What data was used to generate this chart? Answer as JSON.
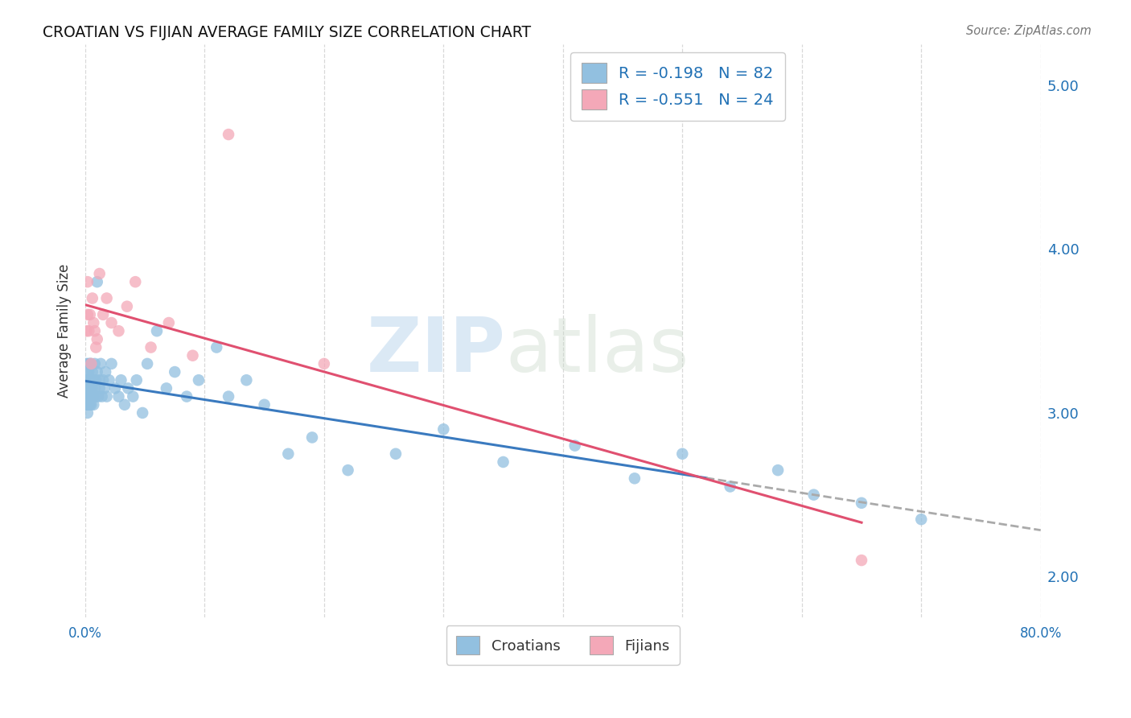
{
  "title": "CROATIAN VS FIJIAN AVERAGE FAMILY SIZE CORRELATION CHART",
  "source": "Source: ZipAtlas.com",
  "ylabel": "Average Family Size",
  "right_yticks": [
    2.0,
    3.0,
    4.0,
    5.0
  ],
  "legend_croatian": "R = -0.198   N = 82",
  "legend_fijian": "R = -0.551   N = 24",
  "legend_label1": "Croatians",
  "legend_label2": "Fijians",
  "color_croatian": "#92c0e0",
  "color_fijian": "#f4a8b8",
  "color_line_croatian": "#3a7abf",
  "color_line_fijian": "#e05070",
  "color_line_ext": "#aaaaaa",
  "watermark_zip": "ZIP",
  "watermark_atlas": "atlas",
  "background_color": "#ffffff",
  "croatian_x": [
    0.001,
    0.001,
    0.001,
    0.001,
    0.001,
    0.002,
    0.002,
    0.002,
    0.002,
    0.002,
    0.002,
    0.002,
    0.003,
    0.003,
    0.003,
    0.003,
    0.003,
    0.003,
    0.004,
    0.004,
    0.004,
    0.004,
    0.005,
    0.005,
    0.005,
    0.005,
    0.005,
    0.006,
    0.006,
    0.006,
    0.007,
    0.007,
    0.007,
    0.008,
    0.008,
    0.009,
    0.009,
    0.01,
    0.01,
    0.011,
    0.012,
    0.012,
    0.013,
    0.014,
    0.015,
    0.016,
    0.017,
    0.018,
    0.02,
    0.022,
    0.025,
    0.028,
    0.03,
    0.033,
    0.036,
    0.04,
    0.043,
    0.048,
    0.052,
    0.06,
    0.068,
    0.075,
    0.085,
    0.095,
    0.11,
    0.12,
    0.135,
    0.15,
    0.17,
    0.19,
    0.22,
    0.26,
    0.3,
    0.35,
    0.41,
    0.46,
    0.5,
    0.54,
    0.58,
    0.61,
    0.65,
    0.7
  ],
  "croatian_y": [
    3.2,
    3.1,
    3.3,
    3.15,
    3.05,
    3.1,
    3.2,
    3.0,
    3.25,
    3.15,
    3.05,
    3.2,
    3.15,
    3.05,
    3.25,
    3.1,
    3.3,
    3.2,
    3.1,
    3.2,
    3.05,
    3.3,
    3.15,
    3.05,
    3.2,
    3.3,
    3.1,
    3.15,
    3.25,
    3.1,
    3.1,
    3.2,
    3.05,
    3.15,
    3.3,
    3.2,
    3.1,
    3.8,
    3.25,
    3.1,
    3.2,
    3.15,
    3.3,
    3.1,
    3.2,
    3.15,
    3.25,
    3.1,
    3.2,
    3.3,
    3.15,
    3.1,
    3.2,
    3.05,
    3.15,
    3.1,
    3.2,
    3.0,
    3.3,
    3.5,
    3.15,
    3.25,
    3.1,
    3.2,
    3.4,
    3.1,
    3.2,
    3.05,
    2.75,
    2.85,
    2.65,
    2.75,
    2.9,
    2.7,
    2.8,
    2.6,
    2.75,
    2.55,
    2.65,
    2.5,
    2.45,
    2.35
  ],
  "fijian_x": [
    0.001,
    0.002,
    0.002,
    0.003,
    0.004,
    0.005,
    0.006,
    0.007,
    0.008,
    0.009,
    0.01,
    0.012,
    0.015,
    0.018,
    0.022,
    0.028,
    0.035,
    0.042,
    0.055,
    0.07,
    0.09,
    0.12,
    0.2,
    0.65
  ],
  "fijian_y": [
    3.5,
    3.6,
    3.8,
    3.5,
    3.6,
    3.3,
    3.7,
    3.55,
    3.5,
    3.4,
    3.45,
    3.85,
    3.6,
    3.7,
    3.55,
    3.5,
    3.65,
    3.8,
    3.4,
    3.55,
    3.35,
    4.7,
    3.3,
    2.1
  ],
  "xlim": [
    0.0,
    0.8
  ],
  "ylim": [
    1.75,
    5.25
  ],
  "grid_color": "#d8d8d8",
  "grid_linestyle": "--",
  "croatian_line_x_solid_end": 0.52,
  "croatian_line_x_ext_end": 0.8,
  "fijian_line_x_end": 0.65,
  "xtick_positions": [
    0.0,
    0.1,
    0.2,
    0.3,
    0.4,
    0.5,
    0.6,
    0.7,
    0.8
  ]
}
